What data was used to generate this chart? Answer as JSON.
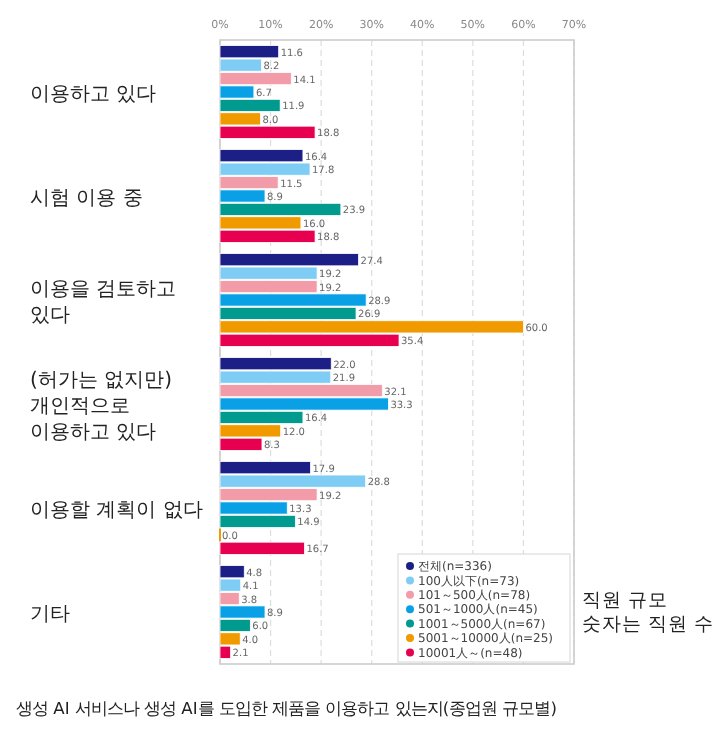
{
  "chart_data": {
    "type": "bar",
    "orientation": "horizontal",
    "title": "생성 AI 서비스나 생성 AI를 도입한 제품을 이용하고 있는지(종업원 규모별)",
    "categories": [
      "이용하고 있다",
      "시험 이용 중",
      "이용을 검토하고 있다",
      "(허가는 없지만) 개인적으로 이용하고 있다",
      "이용할 계획이 없다",
      "기타"
    ],
    "series": [
      {
        "name": "전체(n=336)",
        "color": "#1c1f86",
        "values": [
          11.6,
          16.4,
          27.4,
          22.0,
          17.9,
          4.8
        ],
        "value_labels": [
          "11.6",
          "16.4",
          "27.4",
          "22.0",
          "17.9",
          "4.8"
        ]
      },
      {
        "name": "100人以下(n=73)",
        "color": "#7fcdf4",
        "values": [
          8.2,
          17.8,
          19.2,
          21.9,
          28.8,
          4.1
        ],
        "value_labels": [
          "8.2",
          "17.8",
          "19.2",
          "21.9",
          "28.8",
          "4.1"
        ]
      },
      {
        "name": "101～500人(n=78)",
        "color": "#f19ca8",
        "values": [
          14.1,
          11.5,
          19.2,
          32.1,
          19.2,
          3.8
        ],
        "value_labels": [
          "14.1",
          "11.5",
          "19.2",
          "32.1",
          "19.2",
          "3.8"
        ]
      },
      {
        "name": "501～1000人(n=45)",
        "color": "#0aa0e6",
        "values": [
          6.7,
          8.9,
          28.9,
          33.3,
          13.3,
          8.9
        ],
        "value_labels": [
          "6.7",
          "8.9",
          "28.9",
          "33.3",
          "13.3",
          "8.9"
        ]
      },
      {
        "name": "1001～5000人(n=67)",
        "color": "#009a8e",
        "values": [
          11.9,
          23.9,
          26.9,
          16.4,
          14.9,
          6.0
        ],
        "value_labels": [
          "11.9",
          "23.9",
          "26.9",
          "16.4",
          "14.9",
          "6.0"
        ]
      },
      {
        "name": "5001～10000人(n=25)",
        "color": "#f09a00",
        "values": [
          8.0,
          16.0,
          60.0,
          12.0,
          0.0,
          4.0
        ],
        "value_labels": [
          "8.0",
          "16.0",
          "60.0",
          "12.0",
          "0.0",
          "4.0"
        ]
      },
      {
        "name": "10001人～(n=48)",
        "color": "#e6004f",
        "values": [
          18.8,
          18.8,
          35.4,
          8.3,
          16.7,
          2.1
        ],
        "value_labels": [
          "18.8",
          "18.8",
          "35.4",
          "8.3",
          "16.7",
          "2.1"
        ]
      }
    ],
    "xlim": [
      0,
      70
    ],
    "xticks": [
      {
        "value": 0,
        "label": "0%"
      },
      {
        "value": 10,
        "label": "10%"
      },
      {
        "value": 20,
        "label": "20%"
      },
      {
        "value": 30,
        "label": "30%"
      },
      {
        "value": 40,
        "label": "40%"
      },
      {
        "value": 50,
        "label": "50%"
      },
      {
        "value": 60,
        "label": "60%"
      },
      {
        "value": 70,
        "label": "70%"
      }
    ],
    "grid": "x",
    "legend": "bottom right",
    "annotations": [
      "직원 규모",
      "숫자는 직원 수"
    ]
  }
}
